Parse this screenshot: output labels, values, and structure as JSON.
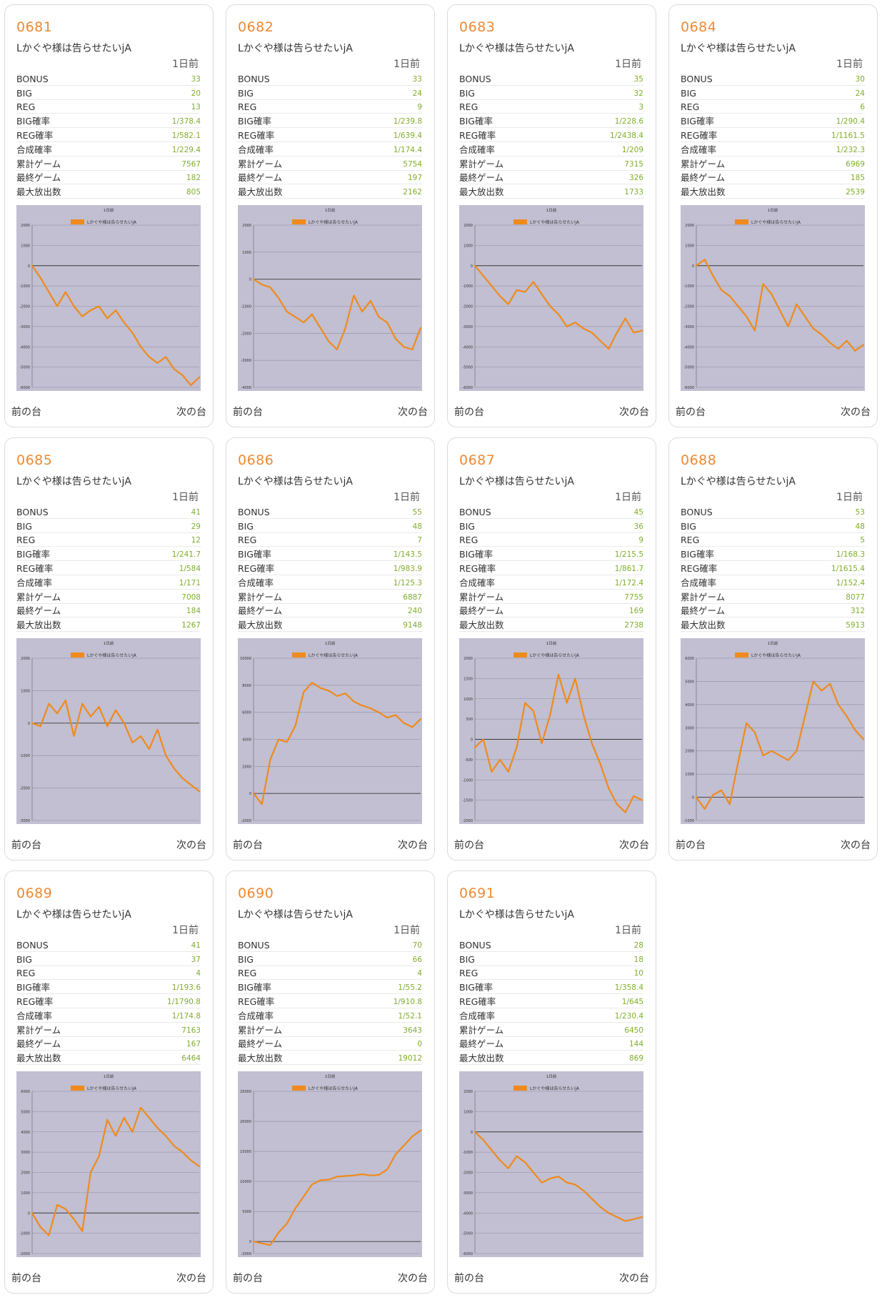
{
  "day_label": "1日前",
  "nav": {
    "prev": "前の台",
    "next": "次の台"
  },
  "colors": {
    "accent": "#ee8a33",
    "value": "#7fae2a",
    "plot_bg": "#c1bfd1",
    "series": "#f08a1c"
  },
  "stat_labels": [
    "BONUS",
    "BIG",
    "REG",
    "BIG確率",
    "REG確率",
    "合成確率",
    "累計ゲーム",
    "最終ゲーム",
    "最大放出数"
  ],
  "cards": [
    {
      "number": "0681",
      "name": "Lかぐや様は告らせたいjA",
      "stats": [
        "33",
        "20",
        "13",
        "1/378.4",
        "1/582.1",
        "1/229.4",
        "7567",
        "182",
        "805"
      ]
    },
    {
      "number": "0682",
      "name": "Lかぐや様は告らせたいjA",
      "stats": [
        "33",
        "24",
        "9",
        "1/239.8",
        "1/639.4",
        "1/174.4",
        "5754",
        "197",
        "2162"
      ]
    },
    {
      "number": "0683",
      "name": "Lかぐや様は告らせたいjA",
      "stats": [
        "35",
        "32",
        "3",
        "1/228.6",
        "1/2438.4",
        "1/209",
        "7315",
        "326",
        "1733"
      ]
    },
    {
      "number": "0684",
      "name": "Lかぐや様は告らせたいjA",
      "stats": [
        "30",
        "24",
        "6",
        "1/290.4",
        "1/1161.5",
        "1/232.3",
        "6969",
        "185",
        "2539"
      ]
    },
    {
      "number": "0685",
      "name": "Lかぐや様は告らせたいjA",
      "stats": [
        "41",
        "29",
        "12",
        "1/241.7",
        "1/584",
        "1/171",
        "7008",
        "184",
        "1267"
      ]
    },
    {
      "number": "0686",
      "name": "Lかぐや様は告らせたいjA",
      "stats": [
        "55",
        "48",
        "7",
        "1/143.5",
        "1/983.9",
        "1/125.3",
        "6887",
        "240",
        "9148"
      ]
    },
    {
      "number": "0687",
      "name": "Lかぐや様は告らせたいjA",
      "stats": [
        "45",
        "36",
        "9",
        "1/215.5",
        "1/861.7",
        "1/172.4",
        "7755",
        "169",
        "2738"
      ]
    },
    {
      "number": "0688",
      "name": "Lかぐや様は告らせたいjA",
      "stats": [
        "53",
        "48",
        "5",
        "1/168.3",
        "1/1615.4",
        "1/152.4",
        "8077",
        "312",
        "5913"
      ]
    },
    {
      "number": "0689",
      "name": "Lかぐや様は告らせたいjA",
      "stats": [
        "41",
        "37",
        "4",
        "1/193.6",
        "1/1790.8",
        "1/174.8",
        "7163",
        "167",
        "6464"
      ]
    },
    {
      "number": "0690",
      "name": "Lかぐや様は告らせたいjA",
      "stats": [
        "70",
        "66",
        "4",
        "1/55.2",
        "1/910.8",
        "1/52.1",
        "3643",
        "0",
        "19012"
      ]
    },
    {
      "number": "0691",
      "name": "Lかぐや様は告らせたいjA",
      "stats": [
        "28",
        "18",
        "10",
        "1/358.4",
        "1/645",
        "1/230.4",
        "6450",
        "144",
        "869"
      ]
    }
  ],
  "chart_data": [
    {
      "type": "line",
      "title": "1日前",
      "series_name": "Lかぐや様は告らせたいjA",
      "ylim": [
        -6000,
        2000
      ],
      "ticks": [
        2000,
        1000,
        0,
        -1000,
        -2000,
        -3000,
        -4000,
        -5000,
        -6000
      ],
      "x": [
        0,
        0.05,
        0.1,
        0.15,
        0.2,
        0.25,
        0.3,
        0.35,
        0.4,
        0.45,
        0.5,
        0.55,
        0.6,
        0.65,
        0.7,
        0.75,
        0.8,
        0.85,
        0.9,
        0.95,
        1
      ],
      "y": [
        0,
        -600,
        -1300,
        -2000,
        -1300,
        -2000,
        -2500,
        -2200,
        -2000,
        -2600,
        -2200,
        -2800,
        -3300,
        -4000,
        -4500,
        -4800,
        -4500,
        -5100,
        -5400,
        -5900,
        -5500
      ]
    },
    {
      "type": "line",
      "title": "1日前",
      "series_name": "Lかぐや様は告らせたいjA",
      "ylim": [
        -4000,
        2000
      ],
      "ticks": [
        2000,
        1000,
        0,
        -1000,
        -2000,
        -3000,
        -4000
      ],
      "x": [
        0,
        0.05,
        0.1,
        0.15,
        0.2,
        0.25,
        0.3,
        0.35,
        0.4,
        0.45,
        0.5,
        0.55,
        0.6,
        0.65,
        0.7,
        0.75,
        0.8,
        0.85,
        0.9,
        0.95,
        1
      ],
      "y": [
        0,
        -200,
        -300,
        -700,
        -1200,
        -1400,
        -1600,
        -1300,
        -1800,
        -2300,
        -2600,
        -1800,
        -600,
        -1200,
        -800,
        -1400,
        -1600,
        -2200,
        -2500,
        -2600,
        -1800
      ]
    },
    {
      "type": "line",
      "title": "1日前",
      "series_name": "Lかぐや様は告らせたいjA",
      "ylim": [
        -6000,
        2000
      ],
      "ticks": [
        2000,
        1000,
        0,
        -1000,
        -2000,
        -3000,
        -4000,
        -5000,
        -6000
      ],
      "x": [
        0,
        0.05,
        0.1,
        0.15,
        0.2,
        0.25,
        0.3,
        0.35,
        0.4,
        0.45,
        0.5,
        0.55,
        0.6,
        0.65,
        0.7,
        0.75,
        0.8,
        0.85,
        0.9,
        0.95,
        1
      ],
      "y": [
        0,
        -500,
        -1000,
        -1500,
        -1900,
        -1200,
        -1300,
        -800,
        -1400,
        -2000,
        -2400,
        -3000,
        -2800,
        -3100,
        -3300,
        -3700,
        -4100,
        -3300,
        -2600,
        -3300,
        -3200
      ]
    },
    {
      "type": "line",
      "title": "1日前",
      "series_name": "Lかぐや様は告らせたいjA",
      "ylim": [
        -6000,
        2000
      ],
      "ticks": [
        2000,
        1000,
        0,
        -1000,
        -2000,
        -3000,
        -4000,
        -5000,
        -6000
      ],
      "x": [
        0,
        0.05,
        0.1,
        0.15,
        0.2,
        0.25,
        0.3,
        0.35,
        0.4,
        0.45,
        0.5,
        0.55,
        0.6,
        0.65,
        0.7,
        0.75,
        0.8,
        0.85,
        0.9,
        0.95,
        1
      ],
      "y": [
        0,
        300,
        -500,
        -1200,
        -1500,
        -2000,
        -2500,
        -3200,
        -900,
        -1400,
        -2200,
        -3000,
        -1900,
        -2500,
        -3100,
        -3400,
        -3800,
        -4100,
        -3700,
        -4200,
        -3900
      ]
    },
    {
      "type": "line",
      "title": "1日前",
      "series_name": "Lかぐや様は告らせたいjA",
      "ylim": [
        -3000,
        2000
      ],
      "ticks": [
        2000,
        1000,
        0,
        -1000,
        -2000,
        -3000
      ],
      "x": [
        0,
        0.05,
        0.1,
        0.15,
        0.2,
        0.25,
        0.3,
        0.35,
        0.4,
        0.45,
        0.5,
        0.55,
        0.6,
        0.65,
        0.7,
        0.75,
        0.8,
        0.85,
        0.9,
        0.95,
        1
      ],
      "y": [
        0,
        -100,
        600,
        300,
        700,
        -400,
        600,
        200,
        500,
        -100,
        400,
        0,
        -600,
        -400,
        -800,
        -200,
        -1000,
        -1400,
        -1700,
        -1900,
        -2100
      ]
    },
    {
      "type": "line",
      "title": "1日前",
      "series_name": "Lかぐや様は告らせたいjA",
      "ylim": [
        -2000,
        10000
      ],
      "ticks": [
        10000,
        8000,
        6000,
        4000,
        2000,
        0,
        -2000
      ],
      "x": [
        0,
        0.05,
        0.1,
        0.15,
        0.2,
        0.25,
        0.3,
        0.35,
        0.4,
        0.45,
        0.5,
        0.55,
        0.6,
        0.65,
        0.7,
        0.75,
        0.8,
        0.85,
        0.9,
        0.95,
        1
      ],
      "y": [
        0,
        -800,
        2500,
        4000,
        3800,
        5000,
        7500,
        8200,
        7800,
        7600,
        7200,
        7400,
        6800,
        6500,
        6300,
        6000,
        5600,
        5800,
        5200,
        4900,
        5500
      ]
    },
    {
      "type": "line",
      "title": "1日前",
      "series_name": "Lかぐや様は告らせたいjA",
      "ylim": [
        -2000,
        2000
      ],
      "ticks": [
        2000,
        1500,
        1000,
        500,
        0,
        -500,
        -1000,
        -1500,
        -2000
      ],
      "x": [
        0,
        0.05,
        0.1,
        0.15,
        0.2,
        0.25,
        0.3,
        0.35,
        0.4,
        0.45,
        0.5,
        0.55,
        0.6,
        0.65,
        0.7,
        0.75,
        0.8,
        0.85,
        0.9,
        0.95,
        1
      ],
      "y": [
        -200,
        0,
        -800,
        -500,
        -800,
        -200,
        900,
        700,
        -100,
        600,
        1600,
        900,
        1500,
        600,
        -100,
        -600,
        -1200,
        -1600,
        -1800,
        -1400,
        -1500
      ]
    },
    {
      "type": "line",
      "title": "1日前",
      "series_name": "Lかぐや様は告らせたいjA",
      "ylim": [
        -1000,
        6000
      ],
      "ticks": [
        6000,
        5000,
        4000,
        3000,
        2000,
        1000,
        0,
        -1000
      ],
      "x": [
        0,
        0.05,
        0.1,
        0.15,
        0.2,
        0.25,
        0.3,
        0.35,
        0.4,
        0.45,
        0.5,
        0.55,
        0.6,
        0.65,
        0.7,
        0.75,
        0.8,
        0.85,
        0.9,
        0.95,
        1
      ],
      "y": [
        0,
        -500,
        100,
        300,
        -300,
        1500,
        3200,
        2800,
        1800,
        2000,
        1800,
        1600,
        2000,
        3500,
        5000,
        4600,
        4900,
        4000,
        3500,
        2900,
        2500
      ]
    },
    {
      "type": "line",
      "title": "1日前",
      "series_name": "Lかぐや様は告らせたいjA",
      "ylim": [
        -2000,
        6000
      ],
      "ticks": [
        6000,
        5000,
        4000,
        3000,
        2000,
        1000,
        0,
        -1000,
        -2000
      ],
      "x": [
        0,
        0.05,
        0.1,
        0.15,
        0.2,
        0.25,
        0.3,
        0.35,
        0.4,
        0.45,
        0.5,
        0.55,
        0.6,
        0.65,
        0.7,
        0.75,
        0.8,
        0.85,
        0.9,
        0.95,
        1
      ],
      "y": [
        0,
        -700,
        -1100,
        400,
        200,
        -300,
        -900,
        2000,
        2800,
        4600,
        3800,
        4700,
        4000,
        5200,
        4700,
        4200,
        3800,
        3300,
        3000,
        2600,
        2300
      ]
    },
    {
      "type": "line",
      "title": "1日前",
      "series_name": "Lかぐや様は告らせたいjA",
      "ylim": [
        -2000,
        25000
      ],
      "ticks": [
        25000,
        20000,
        15000,
        10000,
        5000,
        0,
        -2000
      ],
      "x": [
        0,
        0.05,
        0.1,
        0.15,
        0.2,
        0.25,
        0.3,
        0.35,
        0.4,
        0.45,
        0.5,
        0.55,
        0.6,
        0.65,
        0.7,
        0.75,
        0.8,
        0.85,
        0.9,
        0.95,
        1
      ],
      "y": [
        0,
        -300,
        -600,
        1500,
        3000,
        5500,
        7500,
        9500,
        10200,
        10300,
        10800,
        10900,
        11000,
        11200,
        11000,
        11100,
        12000,
        14500,
        16000,
        17500,
        18500
      ]
    },
    {
      "type": "line",
      "title": "1日前",
      "series_name": "Lかぐや様は告らせたいjA",
      "ylim": [
        -6000,
        2000
      ],
      "ticks": [
        2000,
        1000,
        0,
        -1000,
        -2000,
        -3000,
        -4000,
        -5000,
        -6000
      ],
      "x": [
        0,
        0.05,
        0.1,
        0.15,
        0.2,
        0.25,
        0.3,
        0.35,
        0.4,
        0.45,
        0.5,
        0.55,
        0.6,
        0.65,
        0.7,
        0.75,
        0.8,
        0.85,
        0.9,
        0.95,
        1
      ],
      "y": [
        0,
        -400,
        -900,
        -1400,
        -1800,
        -1200,
        -1500,
        -2000,
        -2500,
        -2300,
        -2200,
        -2500,
        -2600,
        -2900,
        -3300,
        -3700,
        -4000,
        -4200,
        -4400,
        -4300,
        -4200
      ]
    }
  ]
}
